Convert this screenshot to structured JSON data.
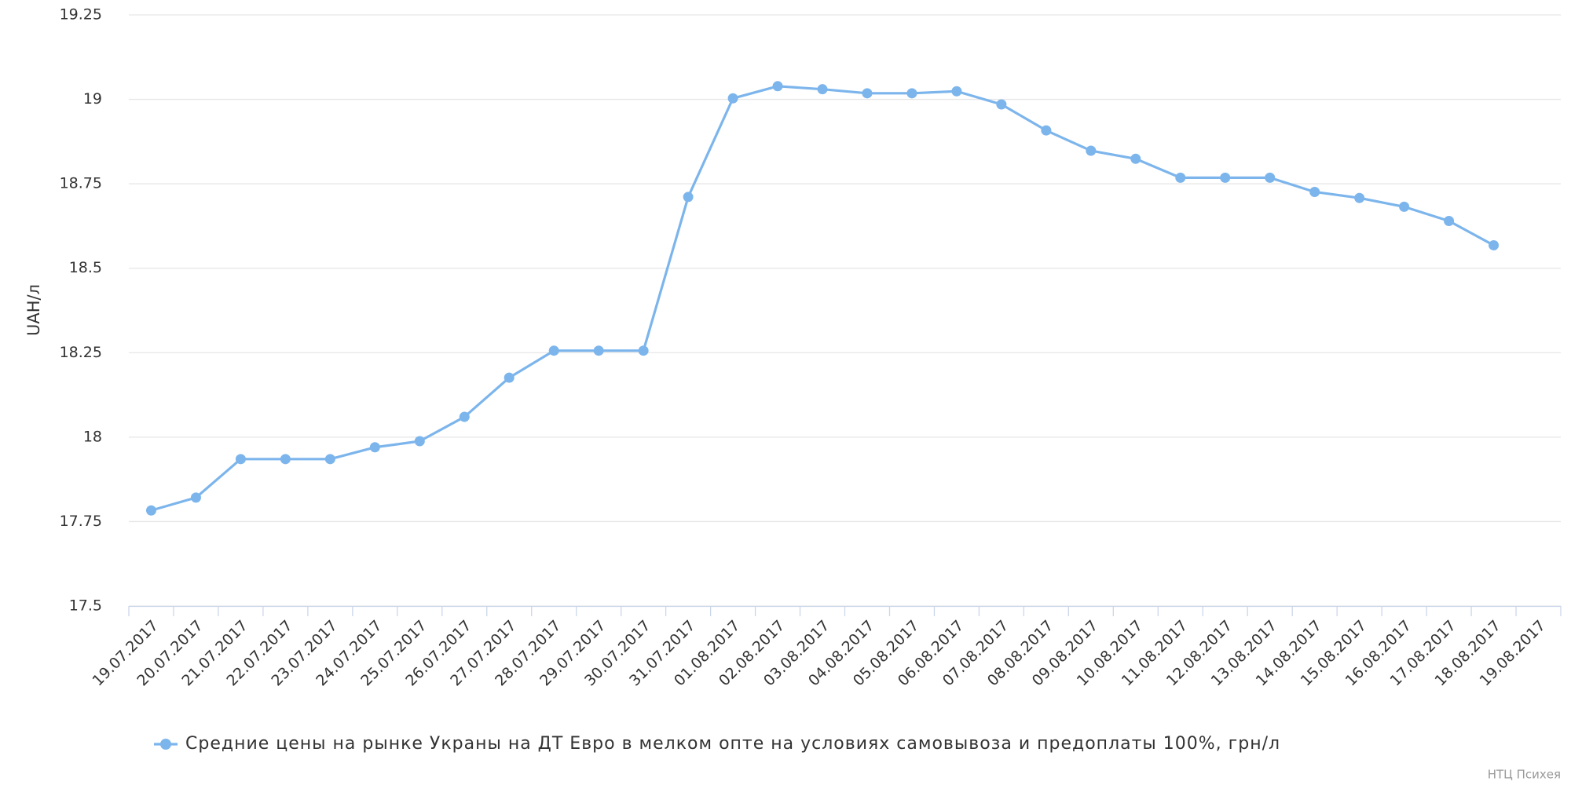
{
  "chart_data": {
    "type": "line",
    "y_label": "UAH/л",
    "credit": "НТЦ Психея",
    "categories": [
      "19.07.2017",
      "20.07.2017",
      "21.07.2017",
      "22.07.2017",
      "23.07.2017",
      "24.07.2017",
      "25.07.2017",
      "26.07.2017",
      "27.07.2017",
      "28.07.2017",
      "29.07.2017",
      "30.07.2017",
      "31.07.2017",
      "01.08.2017",
      "02.08.2017",
      "03.08.2017",
      "04.08.2017",
      "05.08.2017",
      "06.08.2017",
      "07.08.2017",
      "08.08.2017",
      "09.08.2017",
      "10.08.2017",
      "11.08.2017",
      "12.08.2017",
      "13.08.2017",
      "14.08.2017",
      "15.08.2017",
      "16.08.2017",
      "17.08.2017",
      "18.08.2017",
      "19.08.2017"
    ],
    "series": [
      {
        "name": "Средние цены на рынке Украны на ДТ Евро в мелком опте на условиях самовывоза и предоплаты 100%, грн/л",
        "color": "#7cb5ec",
        "values": [
          17.783,
          17.821,
          17.935,
          17.935,
          17.935,
          17.97,
          17.988,
          18.06,
          18.176,
          18.256,
          18.256,
          18.256,
          18.711,
          19.003,
          19.039,
          19.03,
          19.018,
          19.018,
          19.024,
          18.985,
          18.908,
          18.848,
          18.824,
          18.768,
          18.768,
          18.768,
          18.726,
          18.708,
          18.682,
          18.64,
          18.568,
          null
        ]
      }
    ],
    "ylim": [
      17.5,
      19.25
    ],
    "yticks": [
      17.5,
      17.75,
      18,
      18.25,
      18.5,
      18.75,
      19,
      19.25
    ],
    "grid": true
  }
}
